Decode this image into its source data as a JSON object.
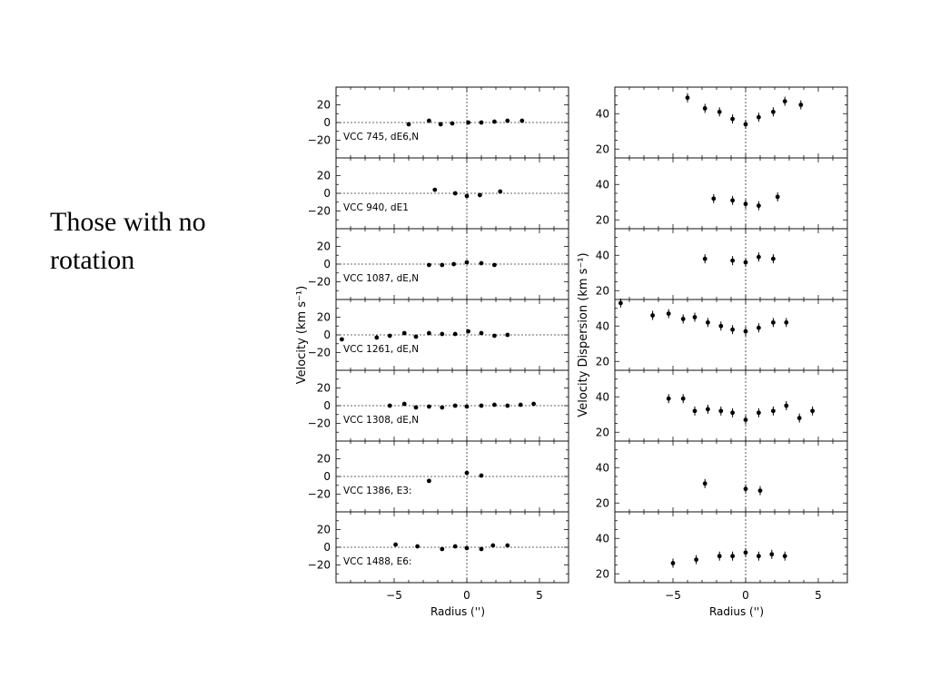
{
  "slide": {
    "title": "Those with no rotation"
  },
  "chart_data": {
    "type": "scatter",
    "x_axis": {
      "label": "Radius ('')",
      "range": [
        -9,
        7
      ],
      "ticks": [
        -5,
        0,
        5
      ],
      "tick_labels": [
        "−5",
        "0",
        "5"
      ]
    },
    "left_column": {
      "ylabel": "Velocity (km s⁻¹)",
      "ylim": [
        -40,
        40
      ],
      "yticks": [
        20,
        0,
        -20
      ],
      "ytick_labels": [
        "20",
        "0",
        "−20"
      ],
      "reference_lines": [
        "x = 0",
        "y = 0"
      ]
    },
    "right_column": {
      "ylabel": "Velocity Dispersion (km s⁻¹)",
      "ylim": [
        15,
        55
      ],
      "yticks": [
        40,
        20
      ],
      "ytick_labels": [
        "40",
        "20"
      ],
      "reference_lines": [
        "x = 0"
      ]
    },
    "panels": [
      {
        "galaxy": "VCC 745, dE6,N",
        "velocity": {
          "x": [
            -4,
            -2.6,
            -1.8,
            -1,
            0.1,
            1,
            1.9,
            2.8,
            3.8
          ],
          "y": [
            -2,
            2,
            -2,
            -1,
            0,
            0,
            1,
            2,
            2
          ]
        },
        "dispersion": {
          "x": [
            -4,
            -2.8,
            -1.8,
            -0.9,
            0,
            0.9,
            1.9,
            2.7,
            3.8
          ],
          "y": [
            49,
            43,
            41,
            37,
            34,
            38,
            41,
            47,
            45
          ],
          "top_value": 49
        }
      },
      {
        "galaxy": "VCC 940, dE1",
        "velocity": {
          "x": [
            -2.2,
            -0.8,
            0,
            0.9,
            2.3
          ],
          "y": [
            4,
            0,
            -3,
            -2,
            2
          ]
        },
        "dispersion": {
          "x": [
            -2.2,
            -0.9,
            0,
            0.9,
            2.2
          ],
          "y": [
            32,
            31,
            29,
            28,
            33
          ]
        }
      },
      {
        "galaxy": "VCC 1087, dE,N",
        "velocity": {
          "x": [
            -2.6,
            -1.7,
            -0.9,
            0,
            1,
            1.9
          ],
          "y": [
            -1,
            -1,
            0,
            2,
            1,
            -1
          ]
        },
        "dispersion": {
          "x": [
            -2.8,
            -0.9,
            0,
            0.9,
            1.9
          ],
          "y": [
            38,
            37,
            36,
            39,
            38
          ]
        }
      },
      {
        "galaxy": "VCC 1261, dE,N",
        "velocity": {
          "x": [
            -8.6,
            -6.2,
            -5.3,
            -4.3,
            -3.5,
            -2.6,
            -1.7,
            -0.8,
            0.1,
            1,
            1.9,
            2.8
          ],
          "y": [
            -5,
            -3,
            -1,
            2,
            -2,
            2,
            1,
            1,
            4,
            2,
            -1,
            0
          ],
          "has_ylabel_marker": true
        },
        "dispersion": {
          "x": [
            -8.6,
            -6.4,
            -5.3,
            -4.3,
            -3.5,
            -2.6,
            -1.7,
            -0.9,
            0,
            0.9,
            1.9,
            2.8
          ],
          "y": [
            53,
            46,
            47,
            44,
            45,
            42,
            40,
            38,
            37,
            39,
            42,
            42
          ]
        }
      },
      {
        "galaxy": "VCC 1308, dE,N",
        "velocity": {
          "x": [
            -5.3,
            -4.3,
            -3.5,
            -2.6,
            -1.7,
            -0.8,
            0,
            1,
            1.9,
            2.8,
            3.7,
            4.6
          ],
          "y": [
            0,
            2,
            -2,
            -1,
            -2,
            0,
            -1,
            0,
            1,
            0,
            1,
            2
          ]
        },
        "dispersion": {
          "x": [
            -5.3,
            -4.3,
            -3.5,
            -2.6,
            -1.7,
            -0.9,
            0,
            0.9,
            1.9,
            2.8,
            3.7,
            4.6
          ],
          "y": [
            39,
            39,
            32,
            33,
            32,
            31,
            27,
            31,
            32,
            35,
            28,
            32
          ]
        }
      },
      {
        "galaxy": "VCC 1386, E3:",
        "velocity": {
          "x": [
            -2.6,
            0,
            1
          ],
          "y": [
            -5,
            4,
            1
          ]
        },
        "dispersion": {
          "x": [
            -2.8,
            0,
            1
          ],
          "y": [
            31,
            28,
            27
          ]
        }
      },
      {
        "galaxy": "VCC 1488, E6:",
        "velocity": {
          "x": [
            -4.9,
            -3.4,
            -1.7,
            -0.8,
            0,
            1,
            1.8,
            2.8
          ],
          "y": [
            3,
            1,
            -2,
            1,
            -1,
            -2,
            2,
            2
          ]
        },
        "dispersion": {
          "x": [
            -5,
            -3.4,
            -1.8,
            -0.9,
            0,
            0.9,
            1.8,
            2.7
          ],
          "y": [
            26,
            28,
            30,
            30,
            32,
            30,
            31,
            30
          ]
        }
      }
    ]
  }
}
